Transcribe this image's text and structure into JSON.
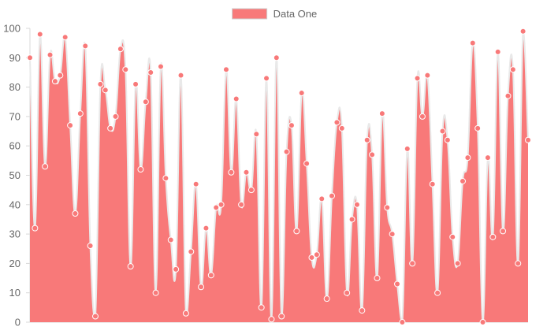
{
  "chart_data": {
    "type": "area",
    "legend_position": "top-center",
    "grid": false,
    "ylim": [
      0,
      100
    ],
    "y_ticks": [
      0,
      10,
      20,
      30,
      40,
      50,
      60,
      70,
      80,
      90,
      100
    ],
    "y_tick_labels": [
      "0",
      "10",
      "20",
      "30",
      "40",
      "50",
      "60",
      "70",
      "80",
      "90",
      "100"
    ],
    "series": [
      {
        "name": "Data One",
        "fill_color": "#f87979",
        "line_color": "#f87979",
        "point_color": "#f87979",
        "values": [
          90,
          32,
          98,
          53,
          91,
          82,
          84,
          97,
          67,
          37,
          71,
          94,
          26,
          2,
          81,
          79,
          66,
          70,
          93,
          86,
          19,
          81,
          52,
          75,
          85,
          10,
          87,
          49,
          28,
          18,
          84,
          3,
          24,
          47,
          12,
          32,
          16,
          39,
          40,
          86,
          51,
          76,
          40,
          51,
          45,
          64,
          5,
          83,
          1,
          90,
          2,
          58,
          67,
          31,
          78,
          54,
          22,
          23,
          42,
          8,
          43,
          68,
          66,
          10,
          35,
          40,
          4,
          62,
          57,
          15,
          71,
          39,
          30,
          13,
          0,
          59,
          20,
          83,
          70,
          84,
          47,
          10,
          65,
          62,
          29,
          20,
          48,
          56,
          95,
          66,
          0,
          56,
          29,
          92,
          31,
          77,
          86,
          20,
          99,
          62
        ]
      }
    ]
  }
}
